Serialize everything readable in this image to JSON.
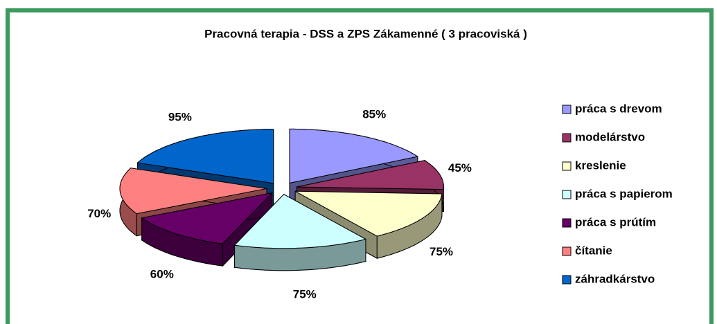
{
  "chart_data": {
    "type": "pie",
    "title": "Pracovná terapia - DSS a ZPS Zákamenné ( 3 pracoviská )",
    "categories": [
      "práca s drevom",
      "modelárstvo",
      "kreslenie",
      "práca s papierom",
      "práca s prútím",
      "čítanie",
      "záhradkárstvo"
    ],
    "values": [
      85,
      45,
      75,
      75,
      60,
      70,
      95
    ],
    "value_labels": [
      "85%",
      "45%",
      "75%",
      "75%",
      "60%",
      "70%",
      "95%"
    ],
    "colors": [
      "#9999ff",
      "#993366",
      "#ffffcc",
      "#ccffff",
      "#660066",
      "#ff8080",
      "#0066cc"
    ],
    "legend": "right"
  }
}
